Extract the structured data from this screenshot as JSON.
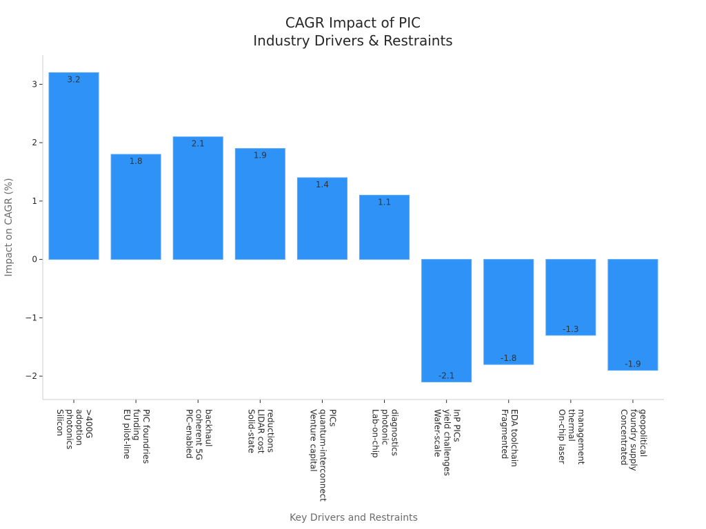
{
  "chart_data": {
    "type": "bar",
    "title": [
      "CAGR Impact of PIC",
      "Industry Drivers & Restraints"
    ],
    "xlabel": "Key Drivers and Restraints",
    "ylabel": "Impact on CAGR (%)",
    "ylim": [
      -2.4,
      3.5
    ],
    "yticks": [
      -2,
      -1,
      0,
      1,
      2,
      3
    ],
    "ytick_labels": [
      "−2",
      "−1",
      "0",
      "1",
      "2",
      "3"
    ],
    "bar_color": "#2e92f7",
    "categories": [
      [
        "Silicon",
        "photonics",
        "adoption",
        ">400G"
      ],
      [
        "EU pilot-line",
        "funding",
        "PIC foundries"
      ],
      [
        "PIC-enabled",
        "coherent 5G",
        "backhaul"
      ],
      [
        "Solid-state",
        "LIDAR cost",
        "reductions"
      ],
      [
        "Venture capital",
        "quantum-interconnect",
        "PICs"
      ],
      [
        "Lab-on-chip",
        "photonic",
        "diagnostics"
      ],
      [
        "Wafer-scale",
        "yield challenges",
        "InP PICs"
      ],
      [
        "Fragmented",
        "EDA toolchain"
      ],
      [
        "On-chip laser",
        "thermal",
        "management"
      ],
      [
        "Concentrated",
        "foundry supply",
        "geopolitical"
      ]
    ],
    "values": [
      3.2,
      1.8,
      2.1,
      1.9,
      1.4,
      1.1,
      -2.1,
      -1.8,
      -1.3,
      -1.9
    ],
    "value_labels": [
      "3.2",
      "1.8",
      "2.1",
      "1.9",
      "1.4",
      "1.1",
      "-2.1",
      "-1.8",
      "-1.3",
      "-1.9"
    ]
  }
}
